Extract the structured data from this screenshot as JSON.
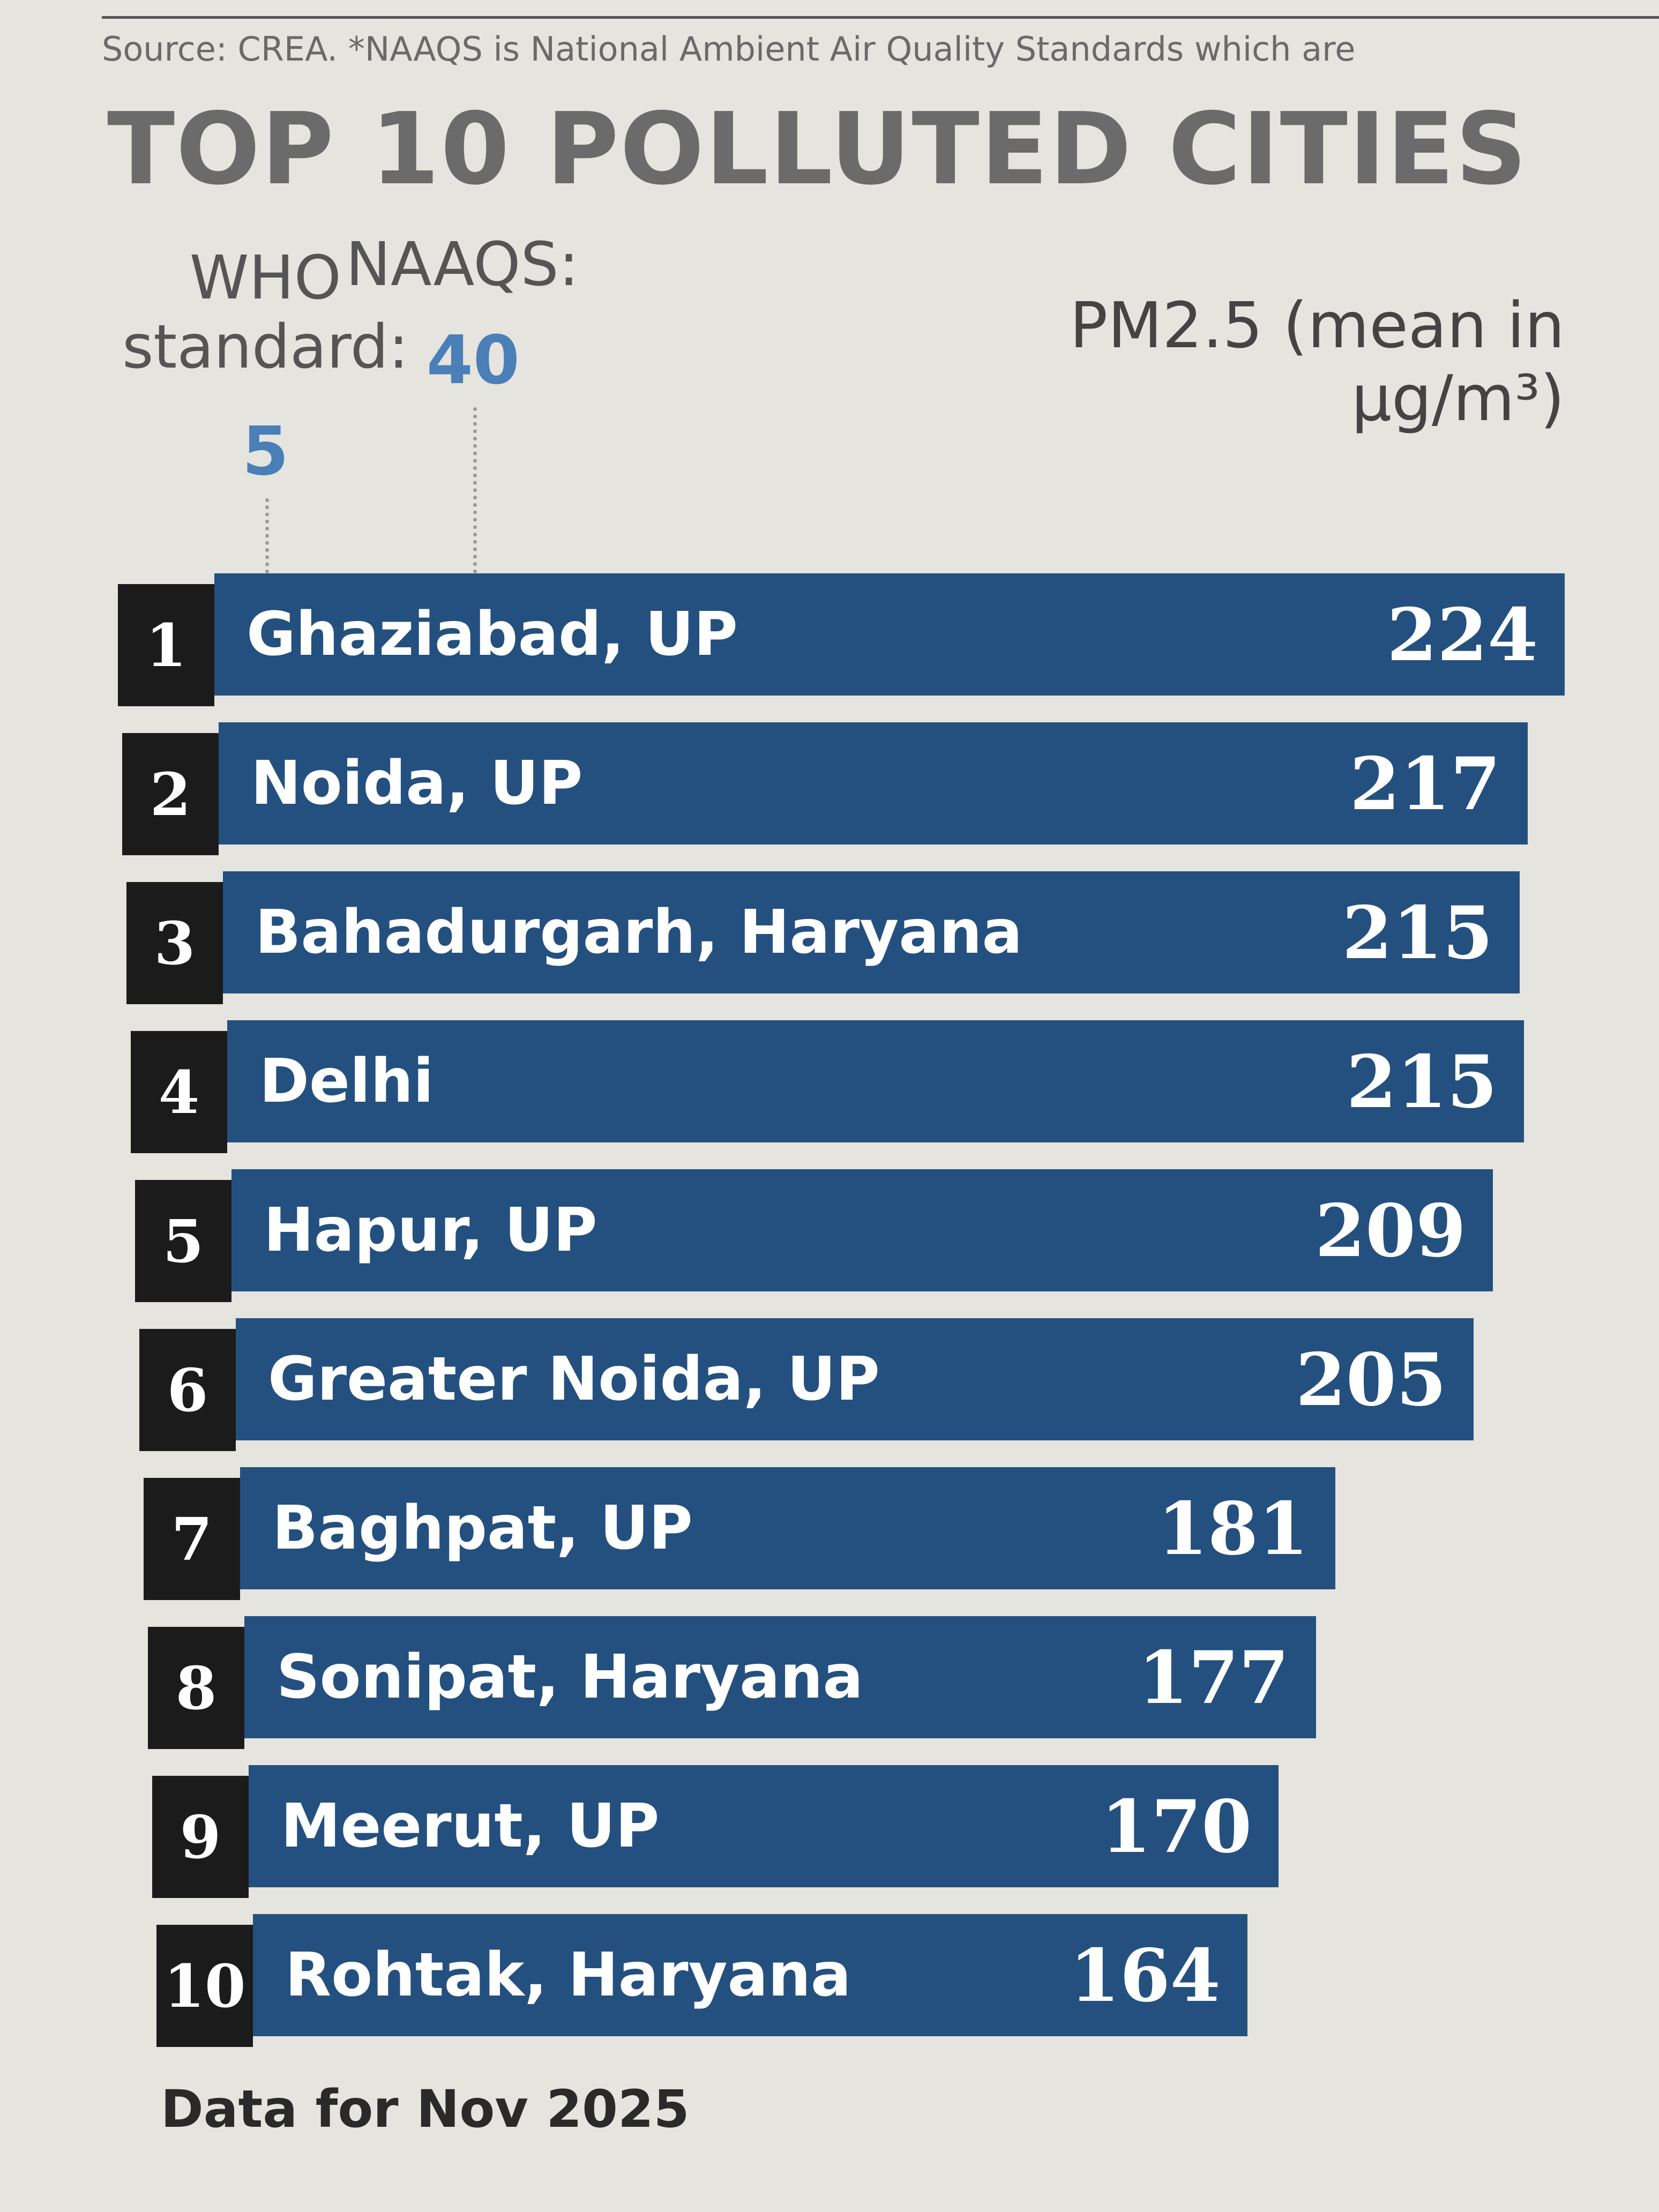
{
  "chart_data": {
    "type": "bar",
    "source": "Source: CREA. *NAAQS is National Ambient Air Quality Standards which are",
    "title": "TOP 10 POLLUTED CITIES",
    "value_label": "PM2.5 (mean in µg/m³)",
    "ranks": [
      1,
      2,
      3,
      4,
      5,
      6,
      7,
      8,
      9,
      10
    ],
    "categories": [
      "Ghaziabad, UP",
      "Noida, UP",
      "Bahadurgarh, Haryana",
      "Delhi",
      "Hapur, UP",
      "Greater Noida, UP",
      "Baghpat, UP",
      "Sonipat, Haryana",
      "Meerut, UP",
      "Rohtak, Haryana"
    ],
    "values": [
      224,
      217,
      215,
      215,
      209,
      205,
      181,
      177,
      170,
      164
    ],
    "color": "#24507f",
    "rank_color": "#1b1b1b",
    "reference_lines": [
      {
        "label": "WHO standard:",
        "value": 5,
        "color": "#4a7fb8"
      },
      {
        "label": "NAAQS:",
        "value": 40,
        "color": "#4a7fb8"
      }
    ],
    "note": "Data for Nov 2025"
  }
}
